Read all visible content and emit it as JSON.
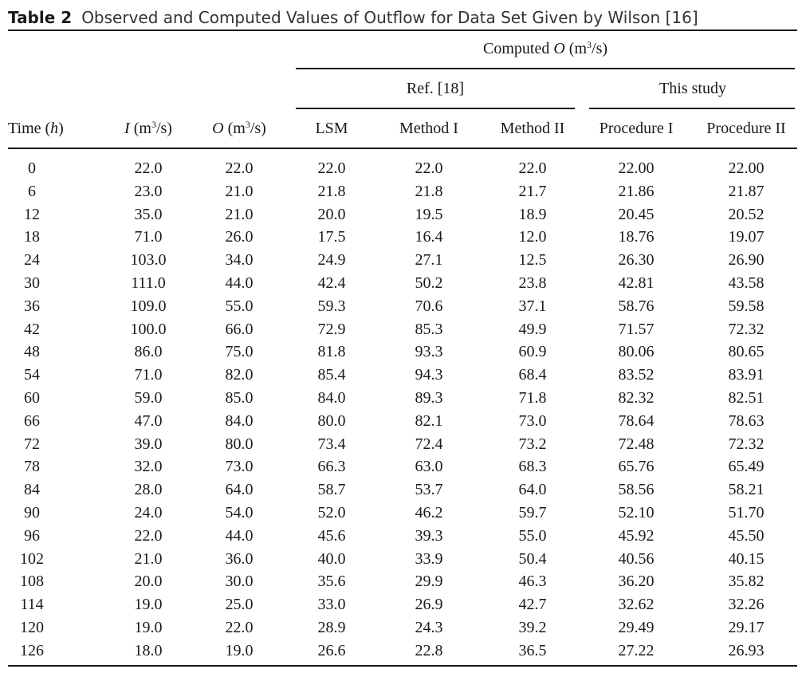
{
  "caption": {
    "label": "Table 2",
    "title": "Observed and Computed Values of Outflow for Data Set Given by Wilson [16]"
  },
  "headers": {
    "computed": {
      "pre": "Computed ",
      "var": "O",
      "unit_pre": " (m",
      "sup": "3",
      "unit_post": "/s)"
    },
    "ref": "Ref. [18]",
    "study": "This study",
    "time": {
      "pre": "Time (",
      "var": "h",
      "post": ")"
    },
    "inflow": {
      "var": "I",
      "unit_pre": " (m",
      "sup": "3",
      "unit_post": "/s)"
    },
    "outflow": {
      "var": "O",
      "unit_pre": " (m",
      "sup": "3",
      "unit_post": "/s)"
    },
    "lsm": "LSM",
    "method1": "Method I",
    "method2": "Method II",
    "proc1": "Procedure I",
    "proc2": "Procedure II"
  },
  "rows": [
    [
      "0",
      "22.0",
      "22.0",
      "22.0",
      "22.0",
      "22.0",
      "22.00",
      "22.00"
    ],
    [
      "6",
      "23.0",
      "21.0",
      "21.8",
      "21.8",
      "21.7",
      "21.86",
      "21.87"
    ],
    [
      "12",
      "35.0",
      "21.0",
      "20.0",
      "19.5",
      "18.9",
      "20.45",
      "20.52"
    ],
    [
      "18",
      "71.0",
      "26.0",
      "17.5",
      "16.4",
      "12.0",
      "18.76",
      "19.07"
    ],
    [
      "24",
      "103.0",
      "34.0",
      "24.9",
      "27.1",
      "12.5",
      "26.30",
      "26.90"
    ],
    [
      "30",
      "111.0",
      "44.0",
      "42.4",
      "50.2",
      "23.8",
      "42.81",
      "43.58"
    ],
    [
      "36",
      "109.0",
      "55.0",
      "59.3",
      "70.6",
      "37.1",
      "58.76",
      "59.58"
    ],
    [
      "42",
      "100.0",
      "66.0",
      "72.9",
      "85.3",
      "49.9",
      "71.57",
      "72.32"
    ],
    [
      "48",
      "86.0",
      "75.0",
      "81.8",
      "93.3",
      "60.9",
      "80.06",
      "80.65"
    ],
    [
      "54",
      "71.0",
      "82.0",
      "85.4",
      "94.3",
      "68.4",
      "83.52",
      "83.91"
    ],
    [
      "60",
      "59.0",
      "85.0",
      "84.0",
      "89.3",
      "71.8",
      "82.32",
      "82.51"
    ],
    [
      "66",
      "47.0",
      "84.0",
      "80.0",
      "82.1",
      "73.0",
      "78.64",
      "78.63"
    ],
    [
      "72",
      "39.0",
      "80.0",
      "73.4",
      "72.4",
      "73.2",
      "72.48",
      "72.32"
    ],
    [
      "78",
      "32.0",
      "73.0",
      "66.3",
      "63.0",
      "68.3",
      "65.76",
      "65.49"
    ],
    [
      "84",
      "28.0",
      "64.0",
      "58.7",
      "53.7",
      "64.0",
      "58.56",
      "58.21"
    ],
    [
      "90",
      "24.0",
      "54.0",
      "52.0",
      "46.2",
      "59.7",
      "52.10",
      "51.70"
    ],
    [
      "96",
      "22.0",
      "44.0",
      "45.6",
      "39.3",
      "55.0",
      "45.92",
      "45.50"
    ],
    [
      "102",
      "21.0",
      "36.0",
      "40.0",
      "33.9",
      "50.4",
      "40.56",
      "40.15"
    ],
    [
      "108",
      "20.0",
      "30.0",
      "35.6",
      "29.9",
      "46.3",
      "36.20",
      "35.82"
    ],
    [
      "114",
      "19.0",
      "25.0",
      "33.0",
      "26.9",
      "42.7",
      "32.62",
      "32.26"
    ],
    [
      "120",
      "19.0",
      "22.0",
      "28.9",
      "24.3",
      "39.2",
      "29.49",
      "29.17"
    ],
    [
      "126",
      "18.0",
      "19.0",
      "26.6",
      "22.8",
      "36.5",
      "27.22",
      "26.93"
    ]
  ]
}
